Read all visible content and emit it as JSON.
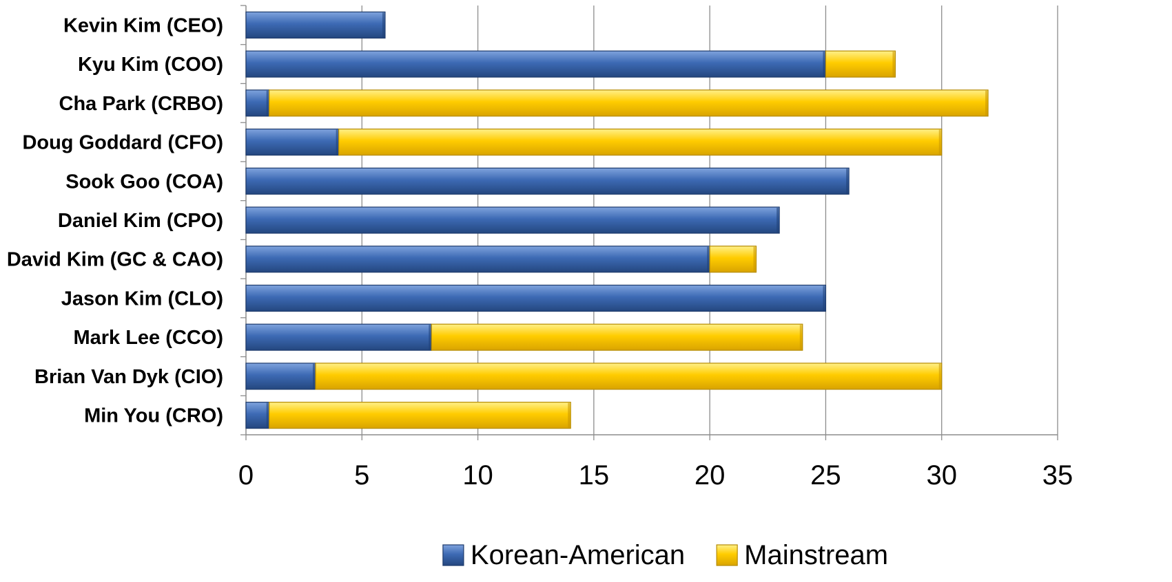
{
  "chart_data": {
    "type": "bar",
    "orientation": "horizontal",
    "stacked": true,
    "categories": [
      "Kevin Kim (CEO)",
      "Kyu Kim (COO)",
      "Cha Park (CRBO)",
      "Doug Goddard (CFO)",
      "Sook Goo (COA)",
      "Daniel Kim (CPO)",
      "David Kim (GC & CAO)",
      "Jason Kim (CLO)",
      "Mark Lee (CCO)",
      "Brian Van Dyk (CIO)",
      "Min You (CRO)"
    ],
    "series": [
      {
        "name": "Korean-American",
        "color": "#3a66b0",
        "values": [
          6,
          25,
          1,
          4,
          26,
          23,
          20,
          25,
          8,
          3,
          1
        ]
      },
      {
        "name": "Mainstream",
        "color": "#ffcc00",
        "values": [
          0,
          3,
          31,
          26,
          0,
          0,
          2,
          0,
          16,
          27,
          13
        ]
      }
    ],
    "xlim": [
      0,
      35
    ],
    "xticks": [
      0,
      5,
      10,
      15,
      20,
      25,
      30,
      35
    ],
    "xticklabels": [
      "0",
      "5",
      "10",
      "15",
      "20",
      "25",
      "30",
      "35"
    ],
    "title": "",
    "xlabel": "",
    "ylabel": "",
    "grid": "vertical",
    "legend": "bottom-center"
  }
}
